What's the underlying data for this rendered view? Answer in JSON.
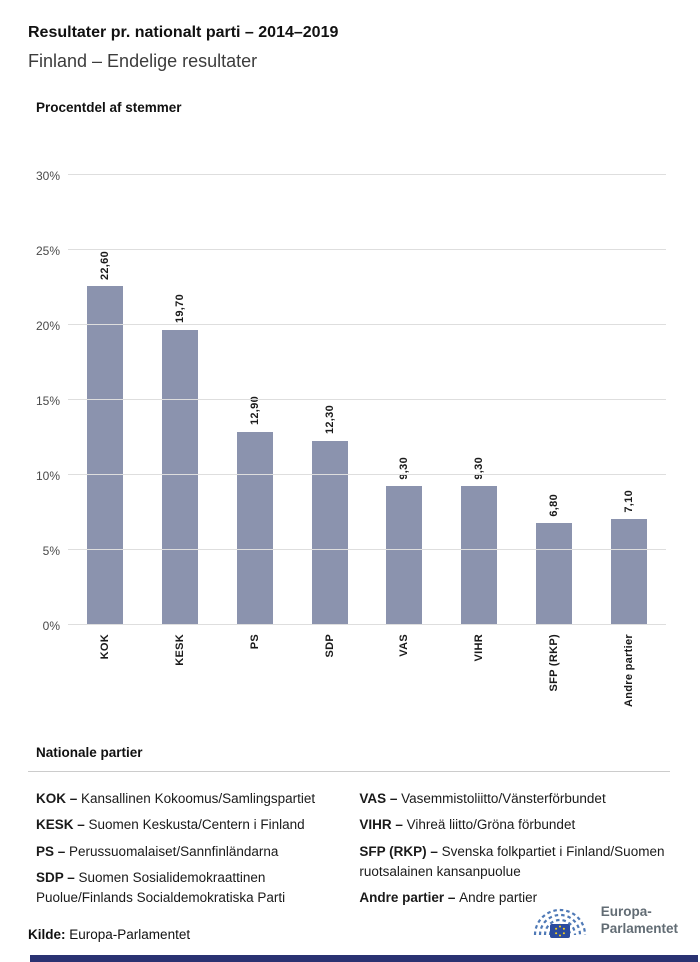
{
  "header": {
    "title": "Resultater pr. nationalt parti – 2014–2019",
    "subtitle": "Finland – Endelige resultater"
  },
  "chart_data": {
    "type": "bar",
    "title": "Procentdel af stemmer",
    "categories": [
      "KOK",
      "KESK",
      "PS",
      "SDP",
      "VAS",
      "VIHR",
      "SFP (RKP)",
      "Andre partier"
    ],
    "values": [
      22.6,
      19.7,
      12.9,
      12.3,
      9.3,
      9.3,
      6.8,
      7.1
    ],
    "value_labels": [
      "22,60",
      "19,70",
      "12,90",
      "12,30",
      "9,30",
      "9,30",
      "6,80",
      "7,10"
    ],
    "ylim": [
      0,
      30
    ],
    "ytick_step": 5,
    "ytick_labels": [
      "0%",
      "5%",
      "10%",
      "15%",
      "20%",
      "25%",
      "30%"
    ],
    "grid": true,
    "legend_position": "none",
    "bar_color": "#8b93ae"
  },
  "legend": {
    "title": "Nationale partier",
    "columns": [
      [
        {
          "abbr": "KOK",
          "name": "Kansallinen Kokoomus/Samlingspartiet"
        },
        {
          "abbr": "KESK",
          "name": "Suomen Keskusta/Centern i Finland"
        },
        {
          "abbr": "PS",
          "name": "Perussuomalaiset/Sannfinländarna"
        },
        {
          "abbr": "SDP",
          "name": "Suomen Sosialidemokraattinen Puolue/Finlands Socialdemokratiska Parti"
        }
      ],
      [
        {
          "abbr": "VAS",
          "name": "Vasemmistoliitto/Vänsterförbundet"
        },
        {
          "abbr": "VIHR",
          "name": "Vihreä liitto/Gröna förbundet"
        },
        {
          "abbr": "SFP (RKP)",
          "name": "Svenska folkpartiet i Finland/Suomen ruotsalainen kansanpuolue"
        },
        {
          "abbr": "Andre partier",
          "name": "Andre partier"
        }
      ]
    ]
  },
  "footer": {
    "source_label": "Kilde:",
    "source_value": " Europa-Parlamentet",
    "logo_line1": "Europa-",
    "logo_line2": "Parlamentet"
  },
  "colors": {
    "bar": "#8b93ae",
    "footer_bar": "#2a3272",
    "logo_arc_blue": "#4f79b6",
    "eu_flag_blue": "#2b4b9e",
    "star_yellow": "#ffd617"
  }
}
